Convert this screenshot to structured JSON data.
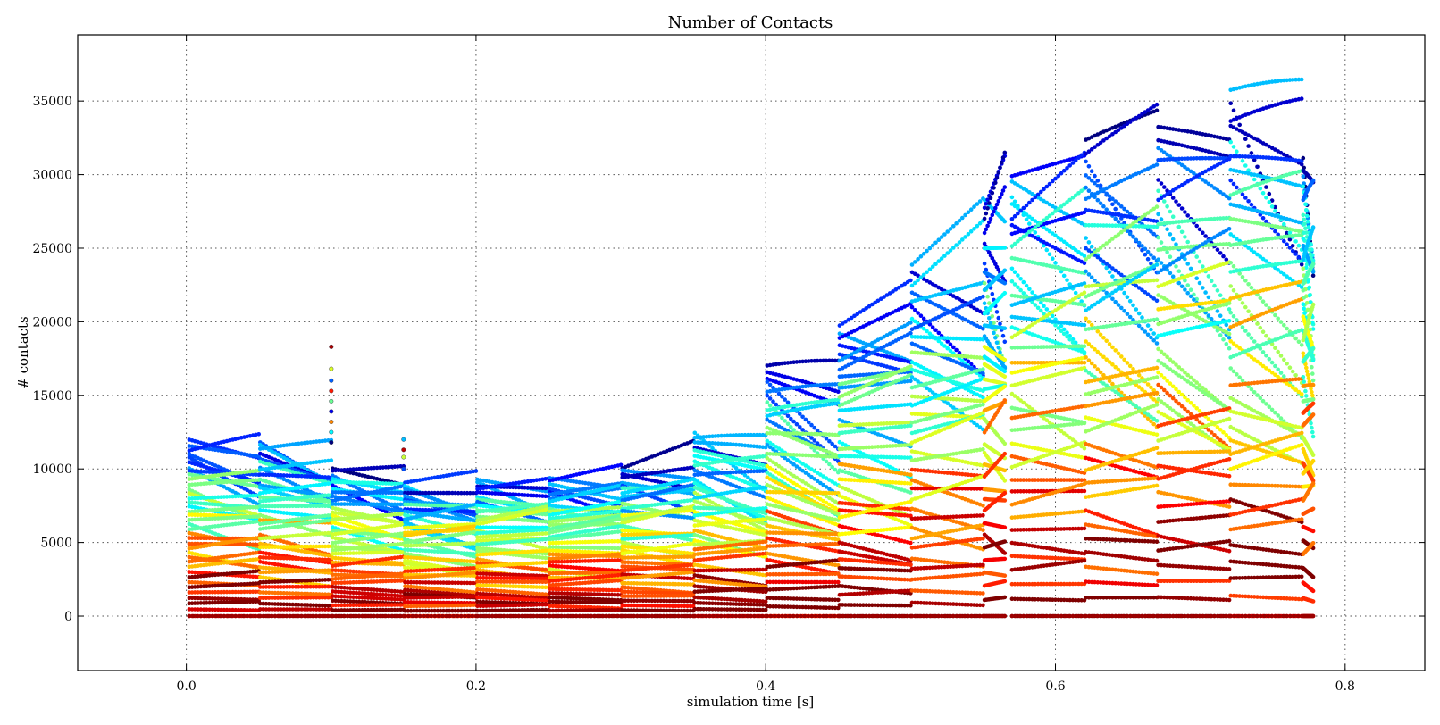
{
  "chart_data": {
    "type": "scatter",
    "title": "Number of Contacts",
    "xlabel": "simulation time [s]",
    "ylabel": "# contacts",
    "xlim": [
      -0.075,
      0.855
    ],
    "ylim": [
      -3700,
      39500
    ],
    "xticks": [
      0.0,
      0.2,
      0.4,
      0.6,
      0.8
    ],
    "xtick_labels": [
      "0.0",
      "0.2",
      "0.4",
      "0.6",
      "0.8"
    ],
    "yticks": [
      0,
      5000,
      10000,
      15000,
      20000,
      25000,
      30000,
      35000
    ],
    "ytick_labels": [
      "0",
      "5000",
      "10000",
      "15000",
      "20000",
      "25000",
      "30000",
      "35000"
    ],
    "grid": true,
    "colormap": "jet",
    "colormap_stops": [
      "#00007f",
      "#0000ff",
      "#007fff",
      "#00ffff",
      "#7fff7f",
      "#ffff00",
      "#ff7f00",
      "#ff0000",
      "#7f0000"
    ],
    "segments": [
      {
        "start": 0.002,
        "end": 0.05,
        "top": 12000,
        "top_end": 11000
      },
      {
        "start": 0.051,
        "end": 0.1,
        "top": 12000,
        "top_end": 11000
      },
      {
        "start": 0.101,
        "end": 0.15,
        "top": 10200,
        "top_end": 9800
      },
      {
        "start": 0.151,
        "end": 0.2,
        "top": 9200,
        "top_end": 8800
      },
      {
        "start": 0.201,
        "end": 0.25,
        "top": 9400,
        "top_end": 9000
      },
      {
        "start": 0.251,
        "end": 0.3,
        "top": 9500,
        "top_end": 9000
      },
      {
        "start": 0.301,
        "end": 0.35,
        "top": 10200,
        "top_end": 10100
      },
      {
        "start": 0.351,
        "end": 0.4,
        "top": 12500,
        "top_end": 10800
      },
      {
        "start": 0.401,
        "end": 0.45,
        "top": 17200,
        "top_end": 14800
      },
      {
        "start": 0.451,
        "end": 0.5,
        "top": 20000,
        "top_end": 19500
      },
      {
        "start": 0.501,
        "end": 0.55,
        "top": 24000,
        "top_end": 24000
      },
      {
        "start": 0.551,
        "end": 0.565,
        "top": 28500,
        "top_end": 28000
      },
      {
        "start": 0.57,
        "end": 0.62,
        "top": 30500,
        "top_end": 29500
      },
      {
        "start": 0.621,
        "end": 0.67,
        "top": 32500,
        "top_end": 30500
      },
      {
        "start": 0.671,
        "end": 0.72,
        "top": 33500,
        "top_end": 30500
      },
      {
        "start": 0.721,
        "end": 0.77,
        "top": 36000,
        "top_end": 32000
      },
      {
        "start": 0.771,
        "end": 0.778,
        "top": 31500,
        "top_end": 28500
      }
    ],
    "outliers": [
      {
        "x": 0.1,
        "y": [
          11800,
          12500,
          13200,
          13900,
          14600,
          15300,
          16000,
          16800,
          18300
        ]
      },
      {
        "x": 0.15,
        "y": [
          10000,
          10800,
          11300,
          12000
        ]
      }
    ]
  }
}
